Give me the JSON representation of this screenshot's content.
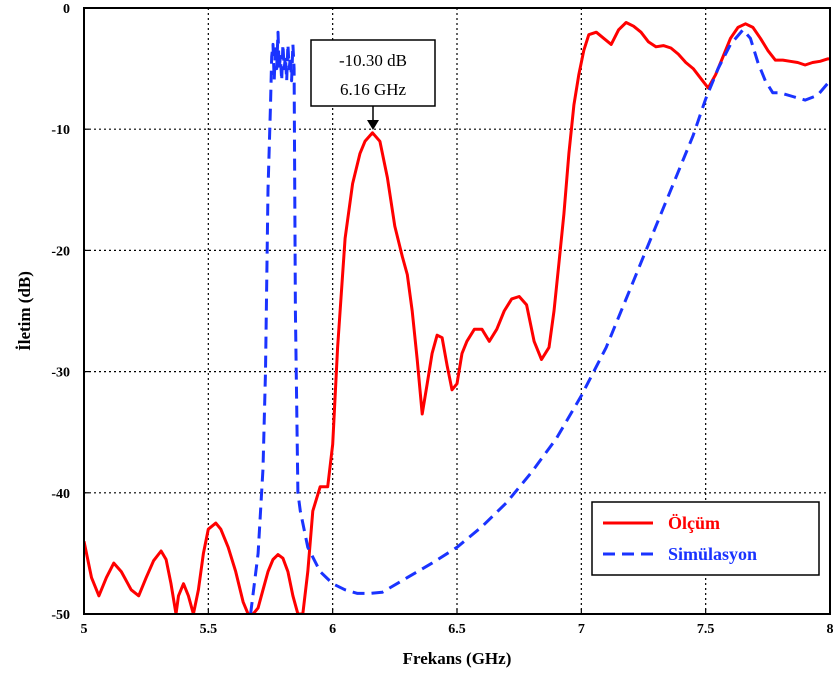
{
  "chart_data": {
    "type": "line",
    "title": "",
    "xlabel": "Frekans (GHz)",
    "ylabel": "İletim (dB)",
    "xlim": [
      5,
      8
    ],
    "ylim": [
      -50,
      0
    ],
    "xticks": [
      5,
      5.5,
      6,
      6.5,
      7,
      7.5,
      8
    ],
    "xtick_labels": [
      "5",
      "5.5",
      "6",
      "6.5",
      "7",
      "7.5",
      "8"
    ],
    "yticks": [
      0,
      -10,
      -20,
      -30,
      -40,
      -50
    ],
    "ytick_labels": [
      "0",
      "-10",
      "-20",
      "-30",
      "-40",
      "-50"
    ],
    "grid": true,
    "legend_position": "bottom-right",
    "annotation": {
      "line1": "-10.30 dB",
      "line2": "6.16 GHz",
      "x": 6.16,
      "y": -10.3
    },
    "series": [
      {
        "name": "Ölçüm",
        "color": "#ff0000",
        "style": "solid",
        "x": [
          5.0,
          5.03,
          5.06,
          5.09,
          5.12,
          5.15,
          5.19,
          5.22,
          5.25,
          5.28,
          5.31,
          5.33,
          5.35,
          5.37,
          5.38,
          5.4,
          5.42,
          5.44,
          5.46,
          5.48,
          5.5,
          5.53,
          5.55,
          5.58,
          5.61,
          5.64,
          5.66,
          5.68,
          5.7,
          5.72,
          5.74,
          5.76,
          5.78,
          5.8,
          5.82,
          5.84,
          5.86,
          5.88,
          5.9,
          5.92,
          5.95,
          5.98,
          6.0,
          6.02,
          6.05,
          6.08,
          6.11,
          6.13,
          6.16,
          6.19,
          6.22,
          6.25,
          6.28,
          6.3,
          6.32,
          6.34,
          6.36,
          6.38,
          6.4,
          6.42,
          6.44,
          6.46,
          6.48,
          6.5,
          6.52,
          6.54,
          6.57,
          6.6,
          6.63,
          6.66,
          6.69,
          6.72,
          6.75,
          6.78,
          6.81,
          6.84,
          6.87,
          6.89,
          6.91,
          6.93,
          6.95,
          6.97,
          6.99,
          7.01,
          7.03,
          7.06,
          7.09,
          7.12,
          7.15,
          7.18,
          7.21,
          7.24,
          7.27,
          7.3,
          7.33,
          7.36,
          7.39,
          7.42,
          7.45,
          7.48,
          7.51,
          7.54,
          7.57,
          7.6,
          7.63,
          7.66,
          7.69,
          7.72,
          7.75,
          7.78,
          7.81,
          7.84,
          7.87,
          7.9,
          7.93,
          7.96,
          7.99,
          8.0
        ],
        "y": [
          -44,
          -47,
          -48.5,
          -47,
          -45.8,
          -46.5,
          -48,
          -48.5,
          -47,
          -45.6,
          -44.8,
          -45.5,
          -47.5,
          -50,
          -48.5,
          -47.5,
          -48.5,
          -50,
          -48,
          -45,
          -43,
          -42.5,
          -43,
          -44.5,
          -46.5,
          -49,
          -50,
          -50,
          -49.5,
          -48,
          -46.5,
          -45.5,
          -45.1,
          -45.4,
          -46.5,
          -48.5,
          -50,
          -50,
          -46.5,
          -41.5,
          -39.5,
          -39.5,
          -36,
          -28,
          -19,
          -14.5,
          -12,
          -11,
          -10.3,
          -11,
          -14,
          -18,
          -20.5,
          -22,
          -25,
          -29,
          -33.5,
          -31,
          -28.5,
          -27,
          -27.2,
          -29.5,
          -31.5,
          -31,
          -28.5,
          -27.5,
          -26.5,
          -26.5,
          -27.5,
          -26.5,
          -25,
          -24,
          -23.8,
          -24.5,
          -27.5,
          -29,
          -28,
          -25,
          -21,
          -17,
          -12,
          -8,
          -5.5,
          -3.5,
          -2.2,
          -2,
          -2.5,
          -3,
          -1.8,
          -1.2,
          -1.5,
          -2,
          -2.8,
          -3.2,
          -3.1,
          -3.3,
          -3.8,
          -4.5,
          -5,
          -5.8,
          -6.6,
          -5.5,
          -4,
          -2.5,
          -1.6,
          -1.3,
          -1.6,
          -2.5,
          -3.5,
          -4.3,
          -4.3,
          -4.4,
          -4.5,
          -4.7,
          -4.5,
          -4.4,
          -4.2,
          -4.2
        ]
      },
      {
        "name": "Simülasyon",
        "color": "#1a33ff",
        "style": "dashed",
        "x": [
          5.67,
          5.7,
          5.72,
          5.73,
          5.74,
          5.75,
          5.755,
          5.76,
          5.765,
          5.77,
          5.775,
          5.78,
          5.785,
          5.79,
          5.795,
          5.8,
          5.805,
          5.81,
          5.815,
          5.82,
          5.825,
          5.83,
          5.835,
          5.84,
          5.845,
          5.85,
          5.86,
          5.87,
          5.9,
          5.95,
          6.0,
          6.05,
          6.1,
          6.15,
          6.2,
          6.3,
          6.4,
          6.5,
          6.6,
          6.7,
          6.8,
          6.9,
          7.0,
          7.1,
          7.2,
          7.3,
          7.4,
          7.45,
          7.5,
          7.55,
          7.6,
          7.65,
          7.68,
          7.71,
          7.74,
          7.77,
          7.8,
          7.85,
          7.9,
          7.95,
          8.0
        ],
        "y": [
          -50,
          -45,
          -38,
          -30,
          -15,
          -8,
          -4,
          -3,
          -6,
          -3,
          -5,
          -2,
          -5,
          -4,
          -6,
          -3,
          -5,
          -4,
          -6,
          -3,
          -5,
          -4,
          -6,
          -3,
          -5,
          -25,
          -40,
          -41.5,
          -44.5,
          -46.5,
          -47.5,
          -48,
          -48.3,
          -48.3,
          -48.2,
          -47,
          -45.8,
          -44.5,
          -42.8,
          -40.8,
          -38.3,
          -35.5,
          -32,
          -28,
          -23,
          -18,
          -13,
          -10.5,
          -7.5,
          -5,
          -3,
          -1.8,
          -2.5,
          -4.5,
          -6,
          -7,
          -7,
          -7.3,
          -7.6,
          -7.2,
          -6
        ]
      }
    ]
  }
}
